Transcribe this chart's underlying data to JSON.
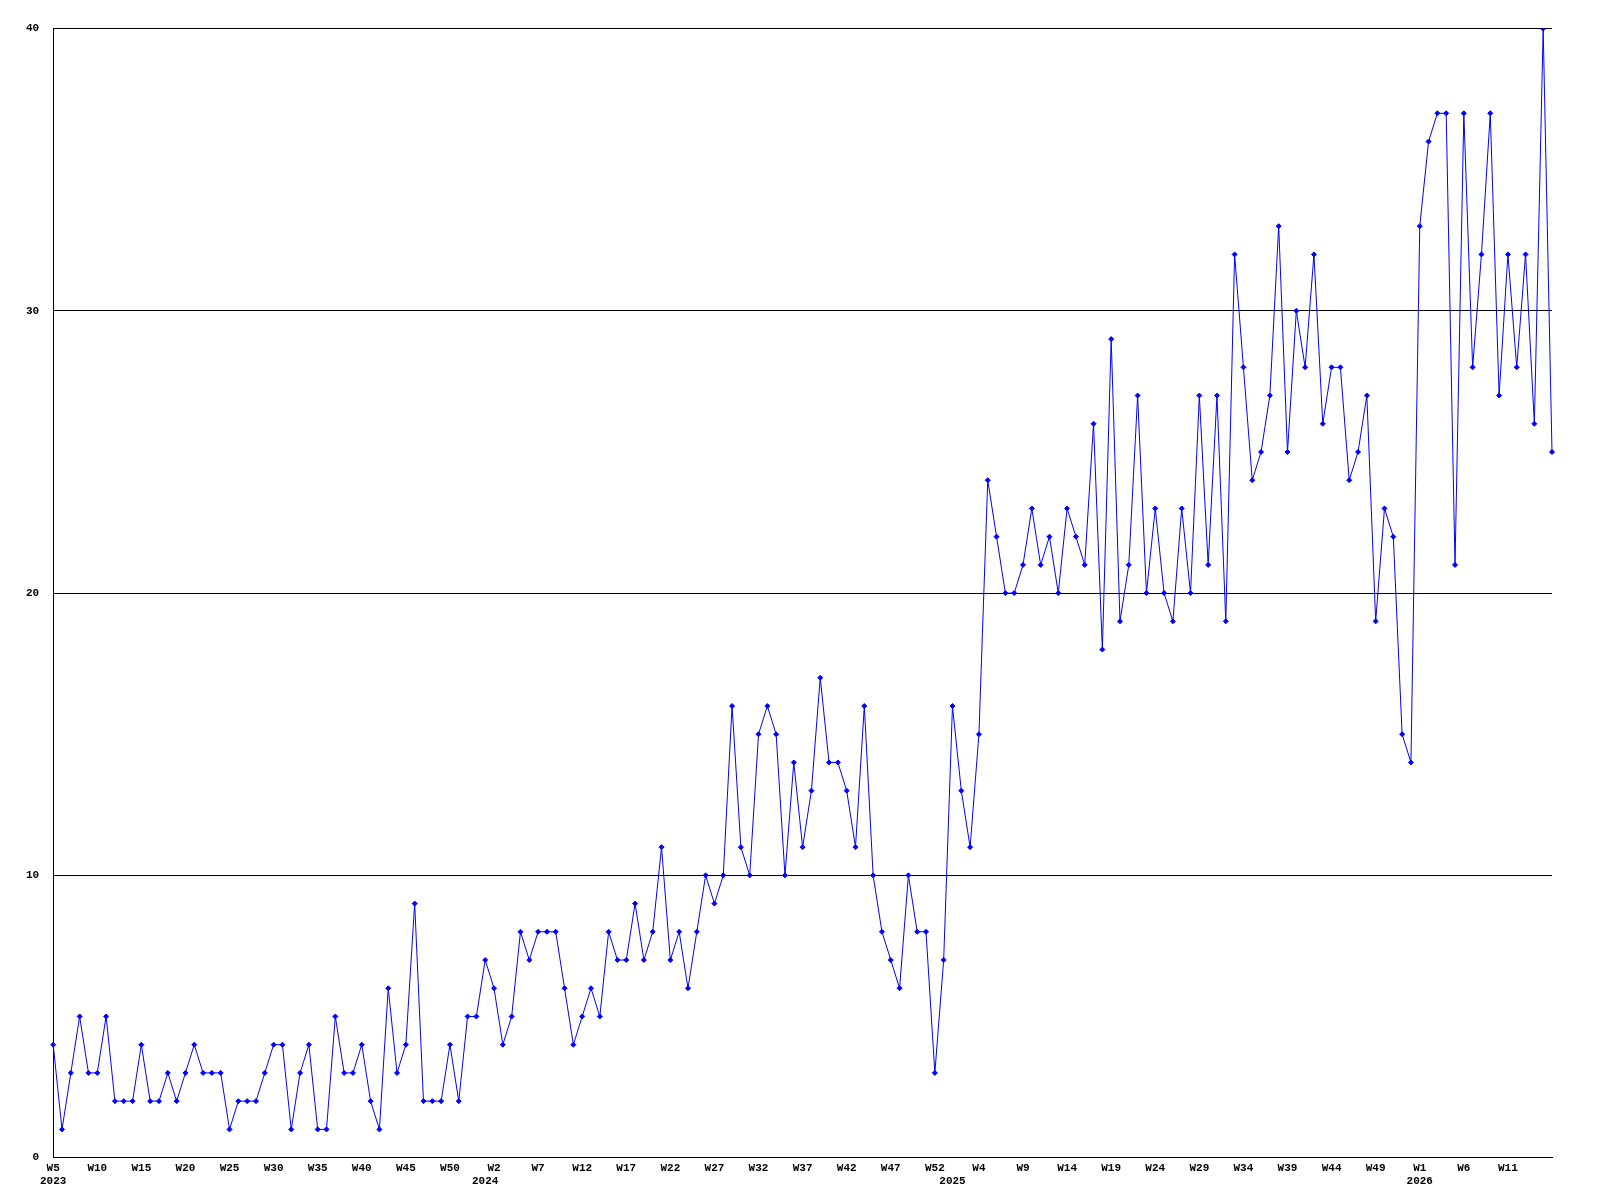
{
  "chart_data": {
    "type": "line",
    "categories": [
      "W5\n2023",
      null,
      null,
      null,
      null,
      "W10",
      null,
      null,
      null,
      null,
      "W15",
      null,
      null,
      null,
      null,
      "W20",
      null,
      null,
      null,
      null,
      "W25",
      null,
      null,
      null,
      null,
      "W30",
      null,
      null,
      null,
      null,
      "W35",
      null,
      null,
      null,
      null,
      "W40",
      null,
      null,
      null,
      null,
      "W45",
      null,
      null,
      null,
      null,
      "W50",
      null,
      null,
      null,
      "\n2024",
      "W2",
      null,
      null,
      null,
      null,
      "W7",
      null,
      null,
      null,
      null,
      "W12",
      null,
      null,
      null,
      null,
      "W17",
      null,
      null,
      null,
      null,
      "W22",
      null,
      null,
      null,
      null,
      "W27",
      null,
      null,
      null,
      null,
      "W32",
      null,
      null,
      null,
      null,
      "W37",
      null,
      null,
      null,
      null,
      "W42",
      null,
      null,
      null,
      null,
      "W47",
      null,
      null,
      null,
      null,
      "W52",
      null,
      "\n2025",
      null,
      null,
      "W4",
      null,
      null,
      null,
      null,
      "W9",
      null,
      null,
      null,
      null,
      "W14",
      null,
      null,
      null,
      null,
      "W19",
      null,
      null,
      null,
      null,
      "W24",
      null,
      null,
      null,
      null,
      "W29",
      null,
      null,
      null,
      null,
      "W34",
      null,
      null,
      null,
      null,
      "W39",
      null,
      null,
      null,
      null,
      "W44",
      null,
      null,
      null,
      null,
      "W49",
      null,
      null,
      null,
      null,
      "W1\n2026",
      null,
      null,
      null,
      null,
      "W6",
      null,
      null,
      null,
      null,
      "W11",
      null,
      null,
      null,
      null,
      null
    ],
    "series": [
      {
        "color": "#0000ff",
        "values": [
          4,
          1,
          3,
          5,
          3,
          3,
          5,
          2,
          2,
          2,
          4,
          2,
          2,
          3,
          2,
          3,
          4,
          3,
          3,
          3,
          1,
          2,
          2,
          2,
          3,
          4,
          4,
          1,
          3,
          4,
          1,
          1,
          5,
          3,
          3,
          4,
          2,
          1,
          6,
          3,
          4,
          9,
          2,
          2,
          2,
          4,
          2,
          5,
          5,
          7,
          6,
          4,
          5,
          8,
          7,
          8,
          8,
          8,
          6,
          4,
          5,
          6,
          5,
          8,
          7,
          7,
          9,
          7,
          8,
          11,
          7,
          8,
          6,
          8,
          10,
          9,
          10,
          16,
          11,
          10,
          15,
          16,
          15,
          10,
          14,
          11,
          13,
          17,
          14,
          14,
          13,
          11,
          16,
          10,
          8,
          7,
          6,
          10,
          8,
          8,
          3,
          7,
          16,
          13,
          11,
          15,
          24,
          22,
          20,
          20,
          21,
          23,
          21,
          22,
          20,
          23,
          22,
          21,
          26,
          18,
          29,
          19,
          21,
          27,
          20,
          23,
          20,
          19,
          23,
          20,
          27,
          21,
          27,
          19,
          32,
          28,
          24,
          25,
          27,
          33,
          25,
          30,
          28,
          32,
          26,
          28,
          28,
          24,
          25,
          27,
          19,
          23,
          22,
          15,
          14,
          33,
          36,
          37,
          37,
          21,
          37,
          28,
          32,
          37,
          27,
          32,
          28,
          32,
          26,
          40,
          25
        ]
      }
    ],
    "ylim": [
      0,
      40
    ],
    "yticks": [
      0,
      10,
      20,
      30,
      40
    ],
    "grid": "y",
    "legend": false,
    "marker": "diamond",
    "line_style": "solid"
  }
}
